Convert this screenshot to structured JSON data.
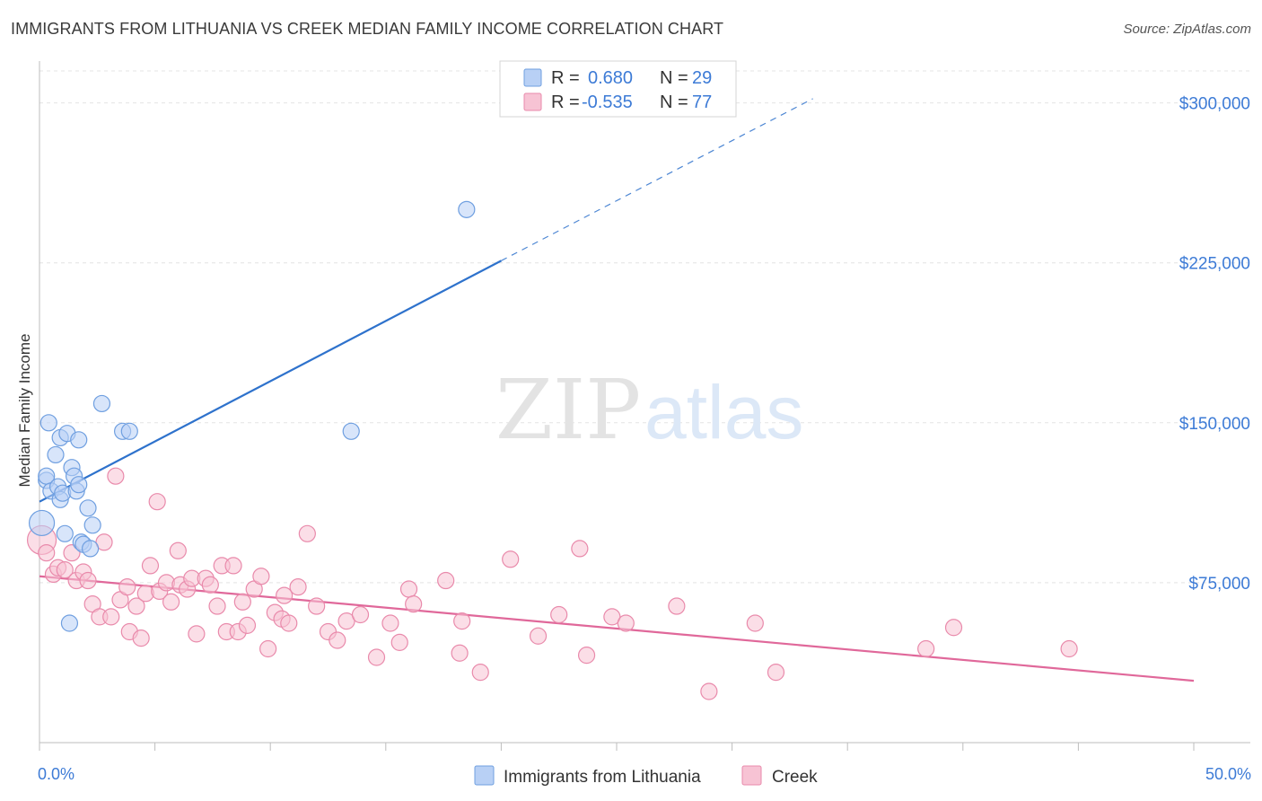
{
  "title": "IMMIGRANTS FROM LITHUANIA VS CREEK MEDIAN FAMILY INCOME CORRELATION CHART",
  "source": "Source: ZipAtlas.com",
  "watermark": {
    "part1": "ZIP",
    "part2": "atlas"
  },
  "colors": {
    "blue": "#6f9fe0",
    "blue_fill": "#b8d0f5",
    "blue_line": "#2e72cc",
    "pink": "#e98aab",
    "pink_fill": "#f7c3d4",
    "pink_line": "#e0689a",
    "axis_label": "#3d7bd6",
    "grid": "#e4e4e4"
  },
  "legend_top": {
    "rows": [
      {
        "r_label": "R =",
        "r_value": "0.680",
        "n_label": "N =",
        "n_value": "29"
      },
      {
        "r_label": "R =",
        "r_value": "-0.535",
        "n_label": "N =",
        "n_value": "77"
      }
    ]
  },
  "legend_bottom": {
    "items": [
      "Immigrants from Lithuania",
      "Creek"
    ]
  },
  "chart_data": {
    "type": "scatter",
    "ylabel": "Median Family Income",
    "xlim": [
      0,
      50
    ],
    "ylim": [
      0,
      315000
    ],
    "x_tick_labels": {
      "left": "0.0%",
      "right": "50.0%"
    },
    "y_ticks": [
      {
        "value": 75000,
        "label": "$75,000"
      },
      {
        "value": 150000,
        "label": "$150,000"
      },
      {
        "value": 225000,
        "label": "$225,000"
      },
      {
        "value": 300000,
        "label": "$300,000"
      }
    ],
    "grid": true,
    "series": [
      {
        "name": "Immigrants from Lithuania",
        "color": "blue",
        "trend": {
          "x": [
            0,
            20,
            33.5
          ],
          "y": [
            113000,
            226000,
            302000
          ],
          "solid_until": 20
        },
        "points": [
          [
            0.1,
            103000,
            14
          ],
          [
            0.3,
            123000,
            9
          ],
          [
            0.3,
            125000,
            9
          ],
          [
            0.4,
            150000,
            9
          ],
          [
            0.5,
            118000,
            9
          ],
          [
            0.7,
            135000,
            9
          ],
          [
            0.8,
            120000,
            9
          ],
          [
            0.9,
            114000,
            9
          ],
          [
            0.9,
            143000,
            9
          ],
          [
            1.0,
            117000,
            9
          ],
          [
            1.1,
            98000,
            9
          ],
          [
            1.2,
            145000,
            9
          ],
          [
            1.3,
            56000,
            9
          ],
          [
            1.4,
            129000,
            9
          ],
          [
            1.5,
            125000,
            9
          ],
          [
            1.6,
            118000,
            9
          ],
          [
            1.7,
            142000,
            9
          ],
          [
            1.7,
            121000,
            9
          ],
          [
            1.8,
            94000,
            9
          ],
          [
            1.9,
            93000,
            9
          ],
          [
            2.1,
            110000,
            9
          ],
          [
            2.2,
            91000,
            9
          ],
          [
            2.3,
            102000,
            9
          ],
          [
            2.7,
            159000,
            9
          ],
          [
            3.6,
            146000,
            9
          ],
          [
            3.9,
            146000,
            9
          ],
          [
            13.5,
            146000,
            9
          ],
          [
            18.5,
            250000,
            9
          ]
        ]
      },
      {
        "name": "Creek",
        "color": "pink",
        "trend": {
          "x": [
            0,
            50
          ],
          "y": [
            78000,
            29000
          ],
          "solid_until": 50
        },
        "points": [
          [
            0.1,
            95000,
            16
          ],
          [
            0.3,
            89000,
            9
          ],
          [
            0.6,
            79000,
            9
          ],
          [
            0.8,
            82000,
            9
          ],
          [
            1.1,
            81000,
            9
          ],
          [
            1.4,
            89000,
            9
          ],
          [
            1.6,
            76000,
            9
          ],
          [
            1.9,
            80000,
            9
          ],
          [
            2.1,
            76000,
            9
          ],
          [
            2.3,
            65000,
            9
          ],
          [
            2.6,
            59000,
            9
          ],
          [
            2.8,
            94000,
            9
          ],
          [
            3.1,
            59000,
            9
          ],
          [
            3.3,
            125000,
            9
          ],
          [
            3.5,
            67000,
            9
          ],
          [
            3.8,
            73000,
            9
          ],
          [
            3.9,
            52000,
            9
          ],
          [
            4.2,
            64000,
            9
          ],
          [
            4.4,
            49000,
            9
          ],
          [
            4.6,
            70000,
            9
          ],
          [
            4.8,
            83000,
            9
          ],
          [
            5.1,
            113000,
            9
          ],
          [
            5.2,
            71000,
            9
          ],
          [
            5.5,
            75000,
            9
          ],
          [
            5.7,
            66000,
            9
          ],
          [
            6.0,
            90000,
            9
          ],
          [
            6.1,
            74000,
            9
          ],
          [
            6.4,
            72000,
            9
          ],
          [
            6.6,
            77000,
            9
          ],
          [
            6.8,
            51000,
            9
          ],
          [
            7.2,
            77000,
            9
          ],
          [
            7.4,
            74000,
            9
          ],
          [
            7.7,
            64000,
            9
          ],
          [
            7.9,
            83000,
            9
          ],
          [
            8.1,
            52000,
            9
          ],
          [
            8.4,
            83000,
            9
          ],
          [
            8.6,
            52000,
            9
          ],
          [
            8.8,
            66000,
            9
          ],
          [
            9.0,
            55000,
            9
          ],
          [
            9.3,
            72000,
            9
          ],
          [
            9.6,
            78000,
            9
          ],
          [
            9.9,
            44000,
            9
          ],
          [
            10.2,
            61000,
            9
          ],
          [
            10.5,
            58000,
            9
          ],
          [
            10.6,
            69000,
            9
          ],
          [
            10.8,
            56000,
            9
          ],
          [
            11.2,
            73000,
            9
          ],
          [
            11.6,
            98000,
            9
          ],
          [
            12.0,
            64000,
            9
          ],
          [
            12.5,
            52000,
            9
          ],
          [
            12.9,
            48000,
            9
          ],
          [
            13.3,
            57000,
            9
          ],
          [
            13.9,
            60000,
            9
          ],
          [
            14.6,
            40000,
            9
          ],
          [
            15.2,
            56000,
            9
          ],
          [
            15.6,
            47000,
            9
          ],
          [
            16.0,
            72000,
            9
          ],
          [
            16.2,
            65000,
            9
          ],
          [
            17.6,
            76000,
            9
          ],
          [
            18.2,
            42000,
            9
          ],
          [
            18.3,
            57000,
            9
          ],
          [
            19.1,
            33000,
            9
          ],
          [
            20.4,
            86000,
            9
          ],
          [
            21.6,
            50000,
            9
          ],
          [
            22.5,
            60000,
            9
          ],
          [
            23.4,
            91000,
            9
          ],
          [
            23.7,
            41000,
            9
          ],
          [
            24.8,
            59000,
            9
          ],
          [
            25.4,
            56000,
            9
          ],
          [
            27.6,
            64000,
            9
          ],
          [
            29.0,
            24000,
            9
          ],
          [
            31.0,
            56000,
            9
          ],
          [
            31.9,
            33000,
            9
          ],
          [
            38.4,
            44000,
            9
          ],
          [
            39.6,
            54000,
            9
          ],
          [
            44.6,
            44000,
            9
          ]
        ]
      }
    ]
  }
}
